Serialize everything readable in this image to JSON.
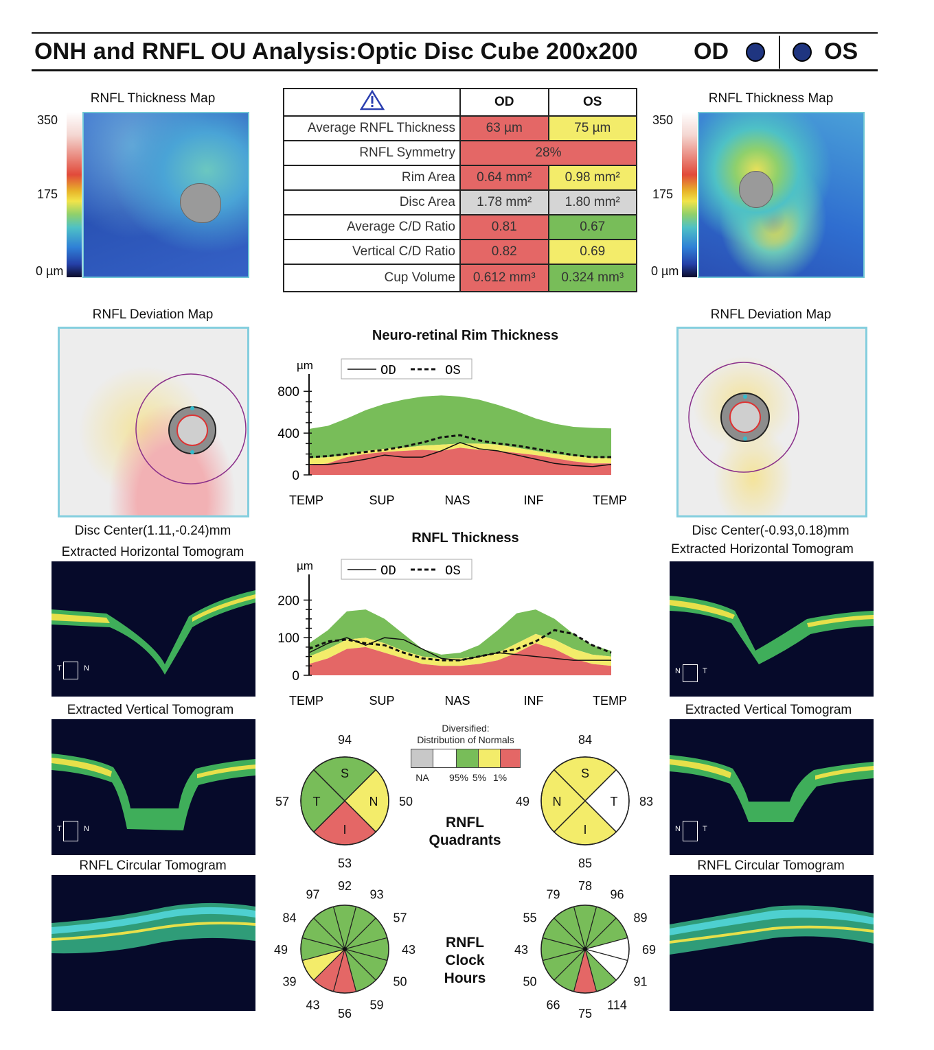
{
  "header": {
    "title": "ONH and RNFL OU Analysis:Optic Disc Cube 200x200",
    "od": "OD",
    "os": "OS"
  },
  "thickness_map": {
    "caption": "RNFL Thickness Map",
    "scale_top": "350",
    "scale_mid": "175",
    "scale_bottom": "0 µm"
  },
  "deviation_map": {
    "caption": "RNFL Deviation Map"
  },
  "od_disc_center": "Disc Center(1.11,-0.24)mm",
  "os_disc_center": "Disc Center(-0.93,0.18)mm",
  "tomograms": {
    "horizontal": "Extracted Horizontal Tomogram",
    "vertical": "Extracted Vertical Tomogram",
    "circular": "RNFL Circular Tomogram"
  },
  "od_tomo_markers": {
    "h_left": "T",
    "h_right": "N",
    "v_left": "T",
    "v_right": "N"
  },
  "os_tomo_markers": {
    "h_left": "N",
    "h_right": "T",
    "v_left": "N",
    "v_right": "T"
  },
  "table": {
    "warning_icon": "warning-triangle-icon",
    "col_od": "OD",
    "col_os": "OS",
    "rows": [
      {
        "label": "Average RNFL Thickness",
        "od": "63 µm",
        "os": "75 µm",
        "od_color": "red",
        "os_color": "yellow"
      },
      {
        "label": "RNFL Symmetry",
        "value": "28%",
        "color": "red"
      },
      {
        "label": "Rim Area",
        "od": "0.64 mm²",
        "os": "0.98 mm²",
        "od_color": "red",
        "os_color": "yellow"
      },
      {
        "label": "Disc Area",
        "od": "1.78 mm²",
        "os": "1.80 mm²",
        "od_color": "gray",
        "os_color": "gray"
      },
      {
        "label": "Average C/D Ratio",
        "od": "0.81",
        "os": "0.67",
        "od_color": "red",
        "os_color": "green"
      },
      {
        "label": "Vertical C/D Ratio",
        "od": "0.82",
        "os": "0.69",
        "od_color": "red",
        "os_color": "yellow"
      },
      {
        "label": "Cup Volume",
        "od": "0.612 mm³",
        "os": "0.324 mm³",
        "od_color": "red",
        "os_color": "green"
      }
    ]
  },
  "chart_data": [
    {
      "type": "line",
      "title": "Neuro-retinal Rim Thickness",
      "ylabel": "µm",
      "yticks": [
        "800",
        "400",
        "0"
      ],
      "ylim": [
        0,
        900
      ],
      "xticks": [
        "TEMP",
        "SUP",
        "NAS",
        "INF",
        "TEMP"
      ],
      "x": [
        0,
        16,
        32,
        48,
        64,
        80,
        96,
        112,
        128,
        144,
        160,
        176,
        192,
        208,
        224,
        240,
        256
      ],
      "bands": {
        "red_top": [
          90,
          110,
          170,
          200,
          220,
          230,
          240,
          230,
          260,
          240,
          230,
          210,
          190,
          160,
          130,
          110,
          110
        ],
        "yellow_top": [
          160,
          170,
          190,
          230,
          250,
          260,
          280,
          290,
          300,
          300,
          290,
          260,
          230,
          200,
          180,
          165,
          160
        ],
        "green_top": [
          440,
          470,
          540,
          620,
          680,
          720,
          750,
          760,
          750,
          720,
          670,
          610,
          540,
          490,
          460,
          450,
          445
        ]
      },
      "series": [
        {
          "name": "OD",
          "style": "solid",
          "values": [
            100,
            100,
            120,
            150,
            190,
            170,
            170,
            230,
            310,
            250,
            230,
            190,
            150,
            110,
            90,
            80,
            100
          ]
        },
        {
          "name": "OS",
          "style": "dashed",
          "values": [
            170,
            180,
            200,
            220,
            240,
            270,
            310,
            360,
            380,
            330,
            300,
            280,
            250,
            220,
            190,
            170,
            170
          ]
        }
      ]
    },
    {
      "type": "line",
      "title": "RNFL Thickness",
      "ylabel": "µm",
      "yticks": [
        "200",
        "100",
        "0"
      ],
      "ylim": [
        0,
        250
      ],
      "xticks": [
        "TEMP",
        "SUP",
        "NAS",
        "INF",
        "TEMP"
      ],
      "x": [
        0,
        16,
        32,
        48,
        64,
        80,
        96,
        112,
        128,
        144,
        160,
        176,
        192,
        208,
        224,
        240,
        256
      ],
      "bands": {
        "red_top": [
          30,
          45,
          70,
          75,
          60,
          45,
          30,
          25,
          25,
          30,
          40,
          60,
          85,
          70,
          45,
          30,
          25
        ],
        "yellow_top": [
          50,
          70,
          95,
          100,
          85,
          65,
          50,
          45,
          45,
          50,
          60,
          85,
          110,
          95,
          70,
          55,
          50
        ],
        "green_top": [
          85,
          120,
          170,
          175,
          150,
          110,
          70,
          55,
          60,
          80,
          120,
          165,
          175,
          150,
          110,
          80,
          65
        ]
      },
      "series": [
        {
          "name": "OD",
          "style": "solid",
          "values": [
            60,
            85,
            100,
            80,
            100,
            95,
            70,
            45,
            40,
            50,
            60,
            55,
            50,
            45,
            40,
            40,
            40
          ]
        },
        {
          "name": "OS",
          "style": "dashed",
          "values": [
            70,
            90,
            95,
            85,
            80,
            60,
            45,
            40,
            40,
            50,
            60,
            70,
            90,
            120,
            110,
            80,
            60
          ]
        }
      ]
    },
    {
      "type": "pie",
      "title": "RNFL Quadrants",
      "eye": "OD",
      "slices": [
        {
          "label": "S",
          "value": 94,
          "color": "green"
        },
        {
          "label": "N",
          "value": 50,
          "color": "yellow"
        },
        {
          "label": "I",
          "value": 53,
          "color": "red"
        },
        {
          "label": "T",
          "value": 57,
          "color": "green"
        }
      ]
    },
    {
      "type": "pie",
      "title": "RNFL Quadrants",
      "eye": "OS",
      "slices": [
        {
          "label": "S",
          "value": 84,
          "color": "yellow"
        },
        {
          "label": "T",
          "value": 83,
          "color": "white"
        },
        {
          "label": "I",
          "value": 85,
          "color": "yellow"
        },
        {
          "label": "N",
          "value": 49,
          "color": "yellow"
        }
      ]
    },
    {
      "type": "pie",
      "title": "RNFL Clock Hours",
      "eye": "OD",
      "clock_values": [
        92,
        93,
        57,
        43,
        50,
        59,
        56,
        43,
        39,
        49,
        84,
        97
      ],
      "clock_colors": [
        "green",
        "green",
        "green",
        "green",
        "green",
        "green",
        "red",
        "red",
        "yellow",
        "green",
        "green",
        "green"
      ]
    },
    {
      "type": "pie",
      "title": "RNFL Clock Hours",
      "eye": "OS",
      "clock_values": [
        78,
        96,
        89,
        69,
        91,
        114,
        75,
        66,
        50,
        43,
        55,
        79
      ],
      "clock_colors": [
        "green",
        "green",
        "green",
        "white",
        "white",
        "green",
        "red",
        "green",
        "green",
        "green",
        "green",
        "green"
      ]
    }
  ],
  "legend": {
    "title_line1": "Diversified:",
    "title_line2": "Distribution of Normals",
    "na": "NA",
    "p95": "95%",
    "p5": "5%",
    "p1": "1%"
  },
  "quadrants_label": {
    "line1": "RNFL",
    "line2": "Quadrants"
  },
  "clock_label": {
    "line1": "RNFL",
    "line2": "Clock",
    "line3": "Hours"
  },
  "colors": {
    "red": "#e46766",
    "yellow": "#f3ec6a",
    "green": "#78bd59",
    "gray": "#d5d5d5",
    "white": "#ffffff",
    "eye_dot": "#1f3580"
  }
}
